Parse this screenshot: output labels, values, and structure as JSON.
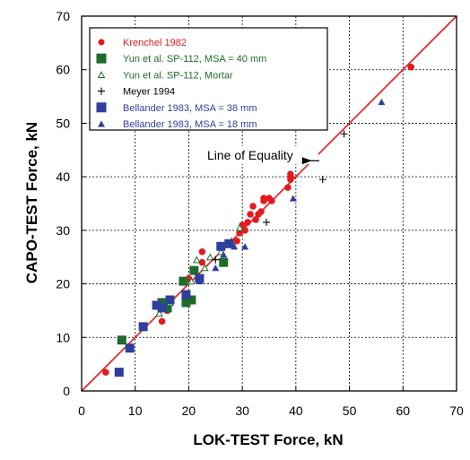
{
  "chart_data": {
    "type": "scatter",
    "title": "",
    "xlabel": "LOK-TEST Force, kN",
    "ylabel": "CAPO-TEST Force, kN",
    "xlim": [
      0,
      70
    ],
    "ylim": [
      0,
      70
    ],
    "xticks": [
      "0",
      "10",
      "20",
      "30",
      "40",
      "50",
      "60",
      "70"
    ],
    "yticks": [
      "0",
      "10",
      "20",
      "30",
      "40",
      "50",
      "60",
      "70"
    ],
    "grid": true,
    "legend_position": "top-left",
    "annotation": {
      "text": "Line of Equality",
      "points_to": [
        43,
        43
      ]
    },
    "reference_line": {
      "color": "#e41a1c",
      "from": [
        0,
        0
      ],
      "to": [
        70,
        70
      ]
    },
    "series": [
      {
        "name": "Krenchel 1982",
        "marker": "circle",
        "color": "#e41a1c",
        "points": [
          [
            4.5,
            3.5
          ],
          [
            15,
            13
          ],
          [
            16,
            15
          ],
          [
            20,
            21
          ],
          [
            22.5,
            24
          ],
          [
            22.5,
            26
          ],
          [
            26,
            27
          ],
          [
            29,
            28
          ],
          [
            29.5,
            29.5
          ],
          [
            30,
            31
          ],
          [
            30.5,
            30
          ],
          [
            31,
            31.5
          ],
          [
            31.5,
            33
          ],
          [
            32,
            34.5
          ],
          [
            32.5,
            32
          ],
          [
            33,
            33
          ],
          [
            33.5,
            33.5
          ],
          [
            34,
            35.5
          ],
          [
            34,
            36
          ],
          [
            35,
            36
          ],
          [
            35.5,
            35.5
          ],
          [
            38.5,
            38
          ],
          [
            39,
            39.5
          ],
          [
            39,
            40
          ],
          [
            39,
            40.5
          ],
          [
            61.5,
            60.5
          ]
        ]
      },
      {
        "name": "Yun et al. SP-112, MSA = 40 mm",
        "marker": "square",
        "color": "#1e6b2a",
        "points": [
          [
            7.5,
            9.5
          ],
          [
            15,
            16.5
          ],
          [
            16,
            15.5
          ],
          [
            19,
            20.5
          ],
          [
            19.5,
            16.5
          ],
          [
            20.5,
            17
          ],
          [
            21,
            22.5
          ],
          [
            22,
            21
          ],
          [
            26.5,
            24
          ]
        ]
      },
      {
        "name": "Yun et al. SP-112, Mortar",
        "marker": "triangle-open",
        "color": "#1e6b2a",
        "points": [
          [
            14.5,
            14.5
          ],
          [
            16.5,
            16.5
          ],
          [
            20.5,
            20.5
          ],
          [
            21.5,
            24.5
          ],
          [
            23,
            23
          ],
          [
            24,
            25
          ],
          [
            26,
            26
          ],
          [
            28,
            28
          ],
          [
            29.5,
            30.5
          ]
        ]
      },
      {
        "name": "Meyer 1994",
        "marker": "plus",
        "color": "#000000",
        "points": [
          [
            25,
            24.5
          ],
          [
            34.5,
            31.5
          ],
          [
            45,
            39.5
          ],
          [
            49,
            48
          ]
        ]
      },
      {
        "name": "Bellander 1983, MSA = 38 mm",
        "marker": "square",
        "color": "#2e3f9e",
        "points": [
          [
            7,
            3.5
          ],
          [
            9,
            8
          ],
          [
            11.5,
            12
          ],
          [
            14,
            16
          ],
          [
            15,
            15.5
          ],
          [
            16.5,
            17
          ],
          [
            19.5,
            18
          ],
          [
            22,
            21
          ],
          [
            26,
            27
          ],
          [
            27.5,
            27.5
          ]
        ]
      },
      {
        "name": "Bellander 1983, MSA = 18 mm",
        "marker": "triangle",
        "color": "#2e3f9e",
        "points": [
          [
            22,
            20.5
          ],
          [
            25,
            23
          ],
          [
            26.5,
            25.5
          ],
          [
            28.5,
            27
          ],
          [
            30.5,
            27
          ],
          [
            39.5,
            36
          ],
          [
            56,
            54
          ]
        ]
      }
    ]
  }
}
